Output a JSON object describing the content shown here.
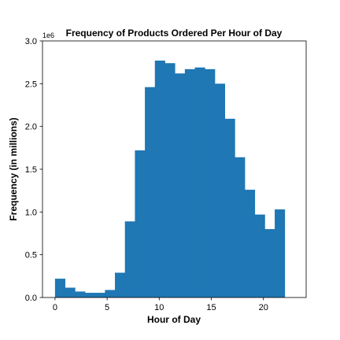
{
  "chart_data": {
    "type": "bar",
    "title": "Frequency of Products Ordered Per Hour of Day",
    "xlabel": "Hour of Day",
    "ylabel": "Frequency (in millions)",
    "y_offset_text": "1e6",
    "x": [
      0,
      1,
      2,
      3,
      4,
      5,
      6,
      7,
      8,
      9,
      10,
      11,
      12,
      13,
      14,
      15,
      16,
      17,
      18,
      19,
      20,
      21,
      22,
      23
    ],
    "values": [
      220000,
      115000,
      70000,
      55000,
      55000,
      88000,
      290000,
      890000,
      1720000,
      2460000,
      2770000,
      2740000,
      2620000,
      2670000,
      2690000,
      2670000,
      2500000,
      2090000,
      1640000,
      1260000,
      970000,
      800000,
      1030000,
      0
    ],
    "xlim": [
      -1.2,
      24.1
    ],
    "ylim": [
      0,
      3000000
    ],
    "xticks": [
      0,
      5,
      10,
      15,
      20
    ],
    "xtick_labels": [
      "0",
      "5",
      "10",
      "15",
      "20"
    ],
    "yticks": [
      0,
      500000,
      1000000,
      1500000,
      2000000,
      2500000,
      3000000
    ],
    "ytick_labels": [
      "0.0",
      "0.5",
      "1.0",
      "1.5",
      "2.0",
      "2.5",
      "3.0"
    ],
    "bar_color": "#1f77b4",
    "grid": false,
    "legend": "none"
  }
}
